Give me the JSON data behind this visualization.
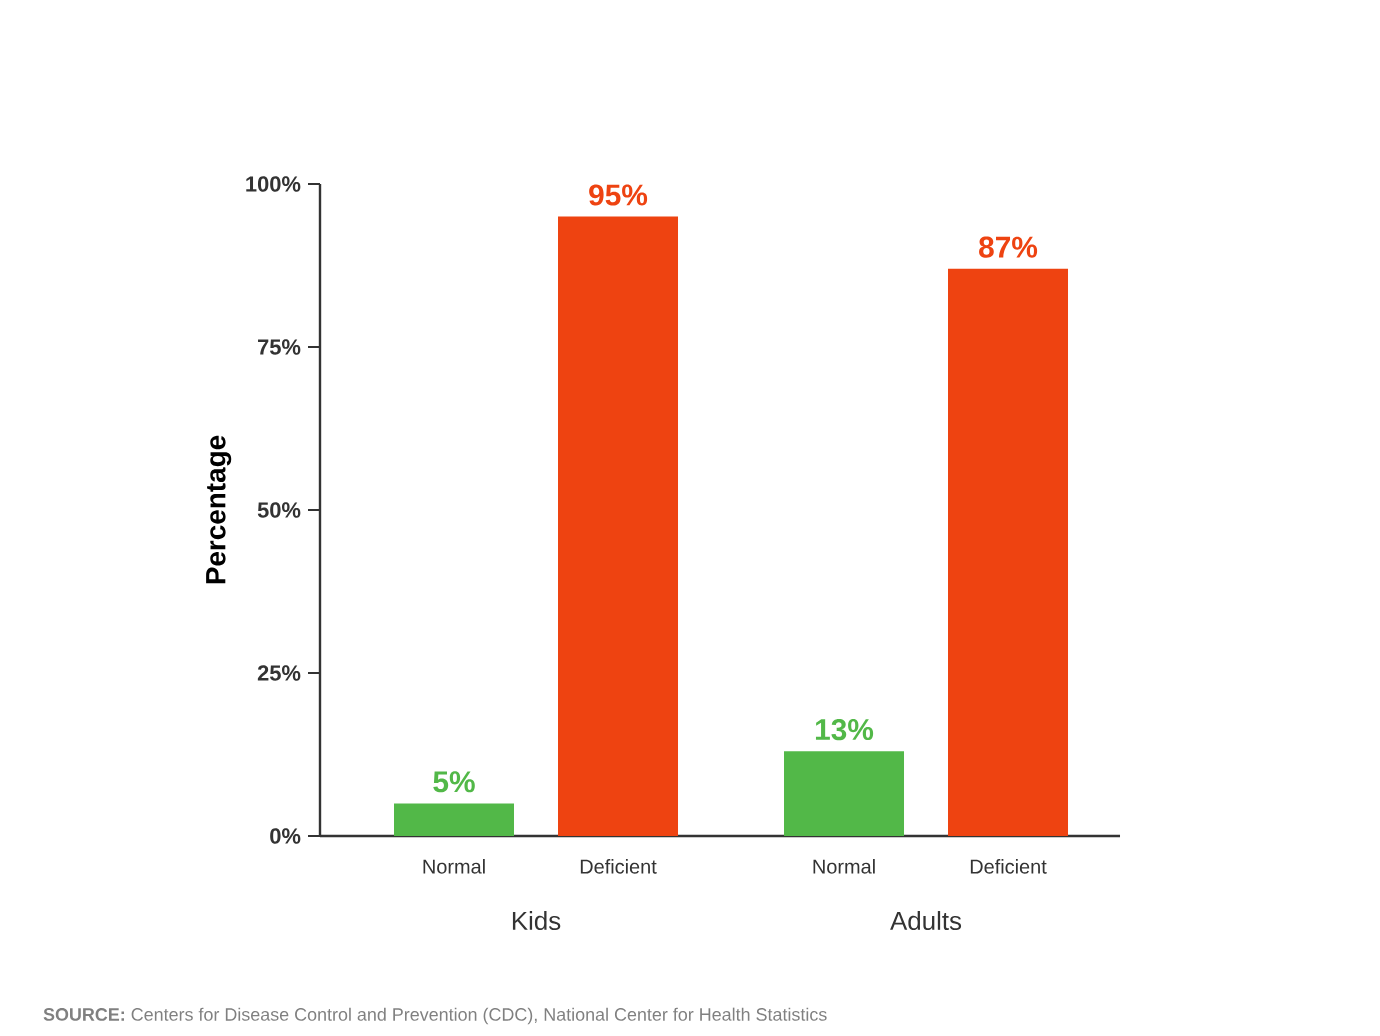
{
  "chart_data": {
    "type": "bar",
    "categories": [
      "Kids",
      "Adults"
    ],
    "series": [
      {
        "name": "Normal",
        "color": "#52b848",
        "values": [
          5,
          13
        ],
        "value_labels": [
          "5%",
          "13%"
        ]
      },
      {
        "name": "Deficient",
        "color": "#ee4311",
        "values": [
          95,
          87
        ],
        "value_labels": [
          "95%",
          "87%"
        ]
      }
    ],
    "ylabel": "Percentage",
    "ylim": [
      0,
      100
    ],
    "yticks": [
      {
        "value": 0,
        "label": "0%"
      },
      {
        "value": 25,
        "label": "25%"
      },
      {
        "value": 50,
        "label": "50%"
      },
      {
        "value": 75,
        "label": "75%"
      },
      {
        "value": 100,
        "label": "100%"
      }
    ],
    "annotations": [
      "**SOURCE:** Centers for Disease Control and Prevention (CDC), National Center for Health Statistics"
    ]
  }
}
